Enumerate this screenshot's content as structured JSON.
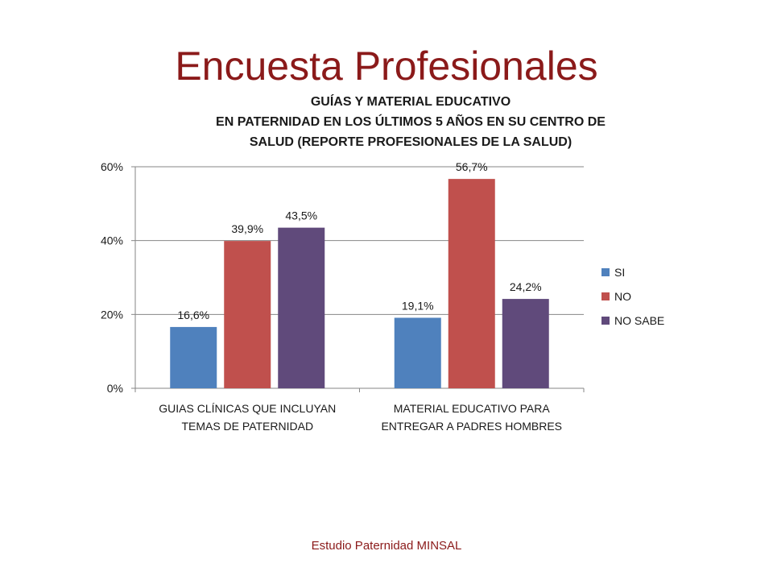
{
  "slide": {
    "title": "Encuesta Profesionales",
    "footer": "Estudio Paternidad MINSAL"
  },
  "chart_data": {
    "type": "bar",
    "title_lines": [
      "GUÍAS Y MATERIAL EDUCATIVO",
      "EN PATERNIDAD EN LOS ÚLTIMOS 5 AÑOS EN SU CENTRO DE",
      "SALUD (REPORTE PROFESIONALES DE LA SALUD)"
    ],
    "categories": [
      [
        "GUIAS CLÍNICAS QUE INCLUYAN",
        "TEMAS DE PATERNIDAD"
      ],
      [
        "MATERIAL EDUCATIVO PARA",
        "ENTREGAR A PADRES HOMBRES"
      ]
    ],
    "series": [
      {
        "name": "SI",
        "color": "#4f81bd",
        "values": [
          16.6,
          19.1
        ],
        "labels": [
          "16,6%",
          "19,1%"
        ]
      },
      {
        "name": "NO",
        "color": "#c0504d",
        "values": [
          39.9,
          56.7
        ],
        "labels": [
          "39,9%",
          "56,7%"
        ]
      },
      {
        "name": "NO SABE",
        "color": "#604a7b",
        "values": [
          43.5,
          24.2
        ],
        "labels": [
          "43,5%",
          "24,2%"
        ]
      }
    ],
    "yticks": [
      "0%",
      "20%",
      "40%",
      "60%"
    ],
    "ylim": [
      0,
      60
    ],
    "grid": true,
    "legend": "right"
  }
}
